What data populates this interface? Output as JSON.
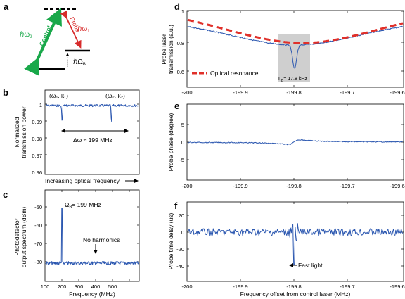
{
  "panels": {
    "a": {
      "label": "a",
      "control_text": "Control",
      "probe_text": "Probe",
      "hbar_omega2_main": "ℏω",
      "hbar_omega2_sub": "2",
      "hbar_omega1_main": "ℏω",
      "hbar_omega1_sub": "1",
      "hbar_omegaB_main": "ℏΩ",
      "hbar_omegaB_sub": "B",
      "colors": {
        "control": "#19a84a",
        "probe": "#d72b2b"
      }
    },
    "b": {
      "label": "b",
      "ylabel_line1": "Normalized",
      "ylabel_line2": "transmission power",
      "xlabel": "Increasing optical frequency",
      "peak1_label": "(ω₁, k₁)",
      "peak2_label": "(ω₂, k₂)",
      "delta_label": "Δω ≈ 199 MHz",
      "yticks": [
        "1",
        "0.99",
        "0.98",
        "0.97",
        "0.96"
      ]
    },
    "c": {
      "label": "c",
      "ylabel_line1": "Photodetector",
      "ylabel_line2": "output spectrum (dBm)",
      "xlabel": "Frequency (MHz)",
      "peak_label": "Ω",
      "peak_label_sub": "B",
      "peak_label_rest": "= 199 MHz",
      "no_harmonics": "No harmonics",
      "yticks": [
        "-50",
        "-60",
        "-70",
        "-80"
      ],
      "xticks": [
        "100",
        "200",
        "300",
        "400",
        "500"
      ]
    },
    "d": {
      "label": "d",
      "ylabel_line1": "Probe laser",
      "ylabel_line2": "transmission (a.u.)",
      "legend": "Optical resonance",
      "gamma_label": "Γ",
      "gamma_sub": "B",
      "gamma_rest": "= 17.8 kHz",
      "yticks": [
        "1",
        "0.8",
        "0.6"
      ],
      "xticks": [
        "-200",
        "-199.9",
        "-199.8",
        "-199.7",
        "-199.6"
      ],
      "colors": {
        "resonance": "#e0302a",
        "data": "#2b57b0"
      }
    },
    "e": {
      "label": "e",
      "ylabel": "Probe phase (degree)",
      "yticks": [
        "5",
        "0",
        "-5"
      ],
      "xticks": [
        "-200",
        "-199.9",
        "-199.8",
        "-199.7",
        "-199.6"
      ]
    },
    "f": {
      "label": "f",
      "ylabel": "Probe time delay (us)",
      "xlabel": "Frequency offset from control laser (MHz)",
      "annotation": "Fast light",
      "yticks": [
        "20",
        "0",
        "-20",
        "-40"
      ],
      "xticks": [
        "-200",
        "-199.9",
        "-199.8",
        "-199.7",
        "-199.6"
      ]
    }
  }
}
